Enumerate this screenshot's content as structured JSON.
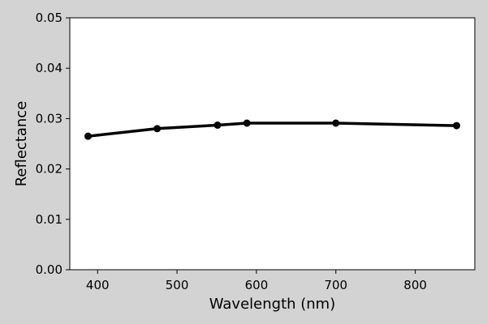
{
  "chart_data": {
    "type": "line",
    "title": "",
    "xlabel": "Wavelength (nm)",
    "ylabel": "Reflectance",
    "xlim": [
      365,
      875
    ],
    "ylim": [
      0,
      0.05
    ],
    "xticks": [
      400,
      500,
      600,
      700,
      800
    ],
    "xtick_labels": [
      "400",
      "500",
      "600",
      "700",
      "800"
    ],
    "yticks": [
      0,
      0.01,
      0.02,
      0.03,
      0.04,
      0.05
    ],
    "ytick_labels": [
      "0.00",
      "0.01",
      "0.02",
      "0.03",
      "0.04",
      "0.05"
    ],
    "grid": false,
    "legend": "none",
    "series": [
      {
        "x": [
          388,
          475,
          551,
          588,
          700,
          852
        ],
        "y": [
          0.0265,
          0.028,
          0.0287,
          0.0291,
          0.0291,
          0.0286
        ],
        "color": "#000000",
        "marker": "circle"
      }
    ]
  },
  "colors": {
    "figure_background": "#d3d3d3",
    "plot_background": "#ffffff",
    "line": "#000000"
  }
}
